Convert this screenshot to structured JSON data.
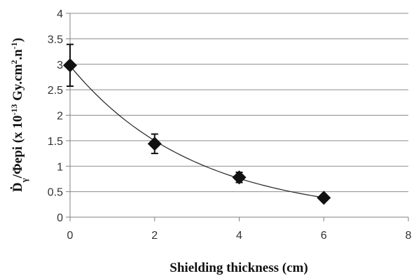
{
  "chart_data": {
    "type": "scatter",
    "xlabel": "Shielding thickness (cm)",
    "ylabel": {
      "prefix": "Ḋ",
      "sub": "γ",
      "mid": "/Φepi (x 10",
      "exp": "-13",
      "rest": " Gy.cm",
      "exp2": "2",
      "rest2": ".n",
      "exp3": "-1",
      "end": ")"
    },
    "xlim": [
      0,
      8
    ],
    "ylim": [
      0,
      4
    ],
    "xticks": [
      "0",
      "2",
      "4",
      "6",
      "8"
    ],
    "yticks": [
      "0",
      "0.5",
      "1",
      "1.5",
      "2",
      "2.5",
      "3",
      "3.5",
      "4"
    ],
    "grid": true,
    "points": [
      {
        "x": 0,
        "y": 2.98,
        "err": 0.41
      },
      {
        "x": 2,
        "y": 1.44,
        "err": 0.19
      },
      {
        "x": 4,
        "y": 0.78,
        "err": 0.1
      },
      {
        "x": 6,
        "y": 0.38,
        "err": 0.0
      }
    ],
    "fit": {
      "type": "exponential",
      "a": 2.97,
      "b": -0.341
    },
    "colors": {
      "marker": "#111111",
      "grid": "#8c8c8c",
      "axis": "#808080",
      "fit": "#222222"
    }
  }
}
